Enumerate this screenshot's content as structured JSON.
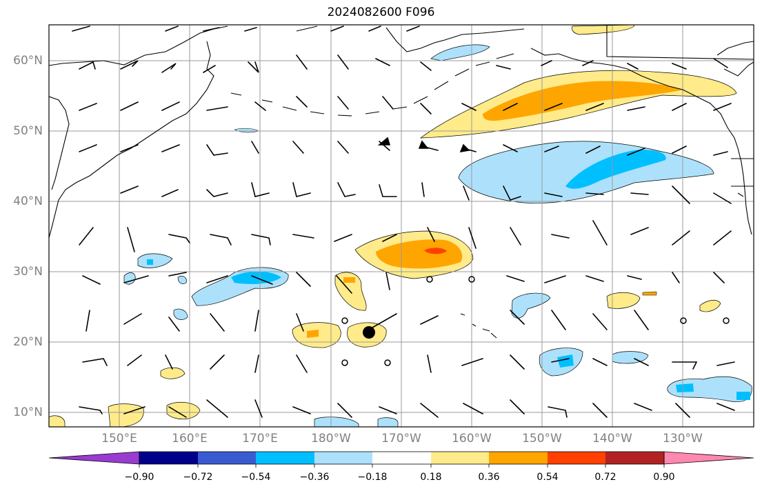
{
  "title": "2024082600 F096",
  "lat_labels": [
    "60°N",
    "50°N",
    "40°N",
    "30°N",
    "20°N",
    "10°N"
  ],
  "lon_labels": [
    "150°E",
    "160°E",
    "170°E",
    "180°W",
    "170°W",
    "160°W",
    "150°W",
    "140°W",
    "130°W"
  ],
  "colorbar": {
    "ticks": [
      "−0.90",
      "−0.72",
      "−0.54",
      "−0.36",
      "−0.18",
      "0.18",
      "0.36",
      "0.54",
      "0.72",
      "0.90"
    ],
    "colors": [
      "#9a3bd1",
      "#00008b",
      "#3a5bd0",
      "#00bfff",
      "#ade1fb",
      "#ffffff",
      "#ffeb8a",
      "#ffa500",
      "#ff4000",
      "#b22222",
      "#ff88b0"
    ]
  },
  "fill_colors": {
    "light_blue": "#ade1fb",
    "blue": "#00bfff",
    "light_yellow": "#ffeb8a",
    "orange": "#ffa500",
    "red_orange": "#ff4000"
  }
}
